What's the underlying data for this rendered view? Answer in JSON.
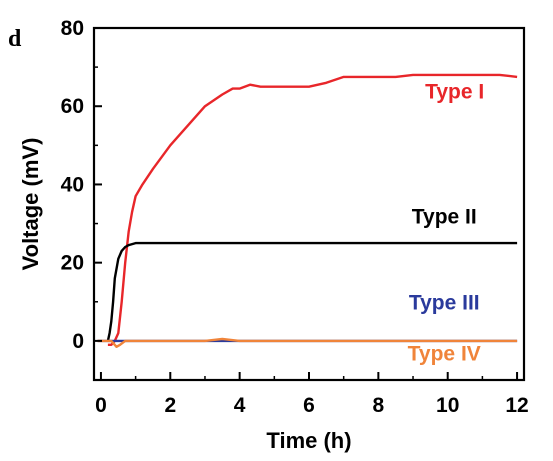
{
  "panel_label": "d",
  "chart_data": {
    "type": "line",
    "xlabel": "Time (h)",
    "ylabel": "Voltage (mV)",
    "xlim": [
      -0.2,
      12.2
    ],
    "ylim": [
      -10,
      80
    ],
    "xticks": [
      0,
      2,
      4,
      6,
      8,
      10,
      12
    ],
    "yticks": [
      0,
      20,
      40,
      60,
      80
    ],
    "grid": false,
    "legend": "inline labels next to curves",
    "series": [
      {
        "name": "Type I",
        "color": "#e8262a",
        "x": [
          0.2,
          0.3,
          0.4,
          0.5,
          0.6,
          0.7,
          0.8,
          0.9,
          1.0,
          1.2,
          1.5,
          2.0,
          2.5,
          3.0,
          3.5,
          3.8,
          4.0,
          4.3,
          4.6,
          5.0,
          5.5,
          6.0,
          6.5,
          7.0,
          7.5,
          8.0,
          8.5,
          9.0,
          9.5,
          10.0,
          10.5,
          11.0,
          11.5,
          12.0
        ],
        "y": [
          -1,
          -1,
          0,
          2,
          10,
          20,
          28,
          33,
          37,
          40,
          44,
          50,
          55,
          60,
          63,
          64.5,
          64.5,
          65.5,
          65,
          65,
          65,
          65,
          66,
          67.5,
          67.5,
          67.5,
          67.5,
          68,
          68,
          68,
          68,
          68,
          68,
          67.5
        ]
      },
      {
        "name": "Type II",
        "color": "#000000",
        "x": [
          0.2,
          0.25,
          0.3,
          0.35,
          0.4,
          0.5,
          0.6,
          0.7,
          0.8,
          1.0,
          1.5,
          2.0,
          4.0,
          6.0,
          8.0,
          10.0,
          12.0
        ],
        "y": [
          0,
          2,
          5,
          10,
          16,
          21,
          23,
          24,
          24.5,
          25,
          25,
          25,
          25,
          25,
          25,
          25,
          25
        ]
      },
      {
        "name": "Type III",
        "color": "#2a3a9c",
        "x": [
          -0.1,
          1,
          2,
          3,
          4,
          5,
          6,
          7,
          8,
          9,
          10,
          11,
          12
        ],
        "y": [
          0,
          0,
          0,
          0,
          0,
          0,
          0,
          0,
          0,
          0,
          0,
          0,
          0
        ]
      },
      {
        "name": "Type IV",
        "color": "#f0843a",
        "x": [
          -0.1,
          0.3,
          0.45,
          0.55,
          0.7,
          1.0,
          2.0,
          3.0,
          3.5,
          4.0,
          6.0,
          8.0,
          10.0,
          12.0
        ],
        "y": [
          0,
          0,
          -1.5,
          -1,
          0,
          0,
          0,
          0,
          0.5,
          0,
          0,
          0,
          0,
          0
        ]
      }
    ],
    "labels": [
      {
        "text": "Type I",
        "series": 0,
        "at": [
          10.2,
          62
        ]
      },
      {
        "text": "Type II",
        "series": 1,
        "at": [
          9.9,
          30
        ]
      },
      {
        "text": "Type III",
        "series": 2,
        "at": [
          9.9,
          8
        ]
      },
      {
        "text": "Type IV",
        "series": 3,
        "at": [
          9.9,
          -5
        ]
      }
    ]
  }
}
